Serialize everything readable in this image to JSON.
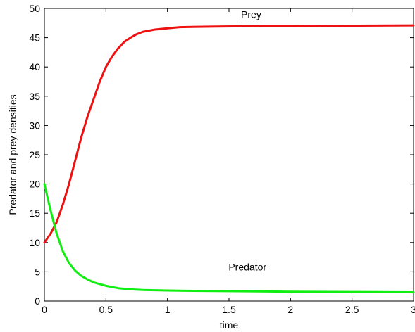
{
  "chart_data": {
    "type": "line",
    "title": "",
    "xlabel": "time",
    "ylabel": "Predator and prey densities",
    "xlim": [
      0,
      3
    ],
    "ylim": [
      0,
      50
    ],
    "x_ticks": [
      0,
      0.5,
      1,
      1.5,
      2,
      2.5,
      3
    ],
    "x_tick_labels": [
      "0",
      "0.5",
      "1",
      "1.5",
      "2",
      "2.5",
      "3"
    ],
    "y_ticks": [
      0,
      5,
      10,
      15,
      20,
      25,
      30,
      35,
      40,
      45,
      50
    ],
    "y_tick_labels": [
      "0",
      "5",
      "10",
      "15",
      "20",
      "25",
      "30",
      "35",
      "40",
      "45",
      "50"
    ],
    "grid": false,
    "series": [
      {
        "color": "#ee1111",
        "x": [
          0,
          0.05,
          0.1,
          0.15,
          0.2,
          0.25,
          0.3,
          0.35,
          0.4,
          0.45,
          0.5,
          0.55,
          0.6,
          0.65,
          0.7,
          0.75,
          0.8,
          0.9,
          1.0,
          1.1,
          1.2,
          1.4,
          1.6,
          1.8,
          2.0,
          2.5,
          3.0
        ],
        "y": [
          10,
          11.5,
          13.5,
          16.5,
          20,
          24,
          28,
          31.5,
          34.5,
          37.5,
          40,
          41.8,
          43.2,
          44.3,
          45,
          45.6,
          46,
          46.4,
          46.6,
          46.8,
          46.85,
          46.9,
          46.95,
          47,
          47,
          47.05,
          47.1
        ]
      },
      {
        "color": "#11ee11",
        "x": [
          0,
          0.05,
          0.1,
          0.15,
          0.2,
          0.25,
          0.3,
          0.35,
          0.4,
          0.5,
          0.6,
          0.7,
          0.8,
          1.0,
          1.2,
          1.5,
          2.0,
          2.5,
          3.0
        ],
        "y": [
          20,
          15.5,
          11.5,
          8.5,
          6.5,
          5.2,
          4.3,
          3.7,
          3.2,
          2.6,
          2.2,
          2.0,
          1.9,
          1.8,
          1.75,
          1.7,
          1.6,
          1.55,
          1.5
        ]
      }
    ],
    "annotations": [
      {
        "text": "Prey",
        "x": 1.68,
        "y": 48.4
      },
      {
        "text": "Predator",
        "x": 1.65,
        "y": 5.2
      }
    ]
  }
}
